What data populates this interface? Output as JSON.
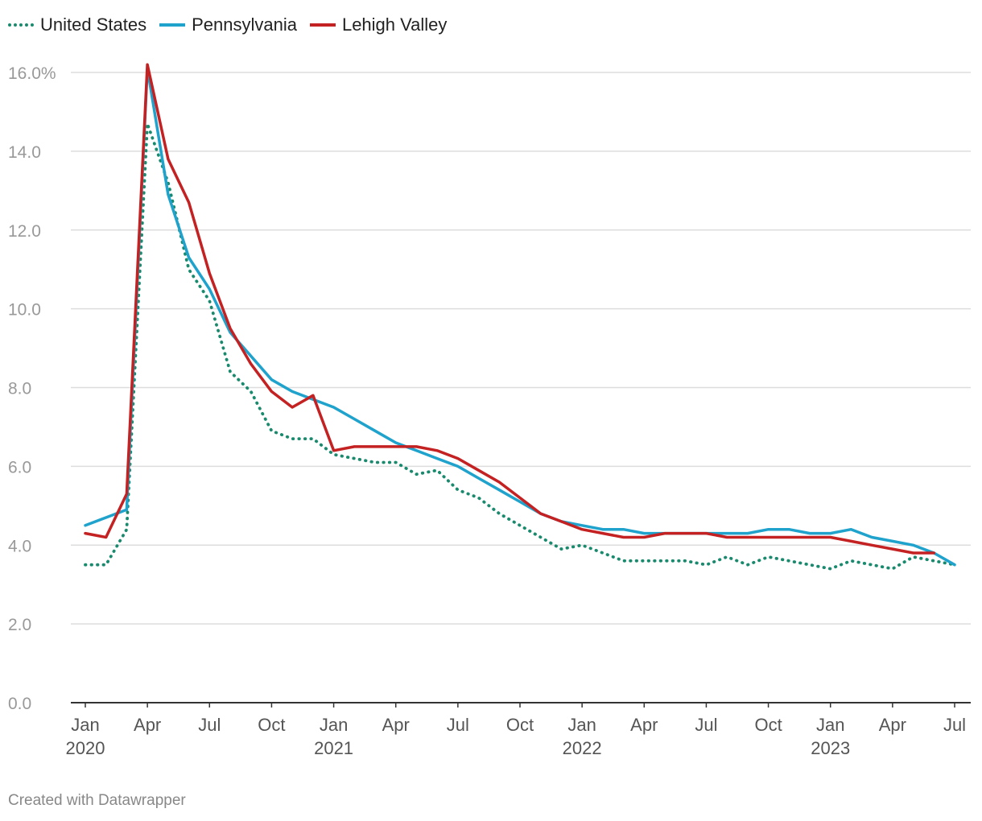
{
  "legend": {
    "us": "United States",
    "pa": "Pennsylvania",
    "lv": "Lehigh Valley"
  },
  "colors": {
    "us": "#1a8a6e",
    "pa": "#1fa2cc",
    "lv": "#c42122",
    "grid": "#dddddd",
    "axis": "#333333",
    "tick": "#999999"
  },
  "footer": "Created with Datawrapper",
  "chart_data": {
    "type": "line",
    "title": "",
    "xlabel": "",
    "ylabel": "",
    "ylim": [
      0,
      16
    ],
    "y_ticks": [
      "0.0",
      "2.0",
      "4.0",
      "6.0",
      "8.0",
      "10.0",
      "12.0",
      "14.0",
      "16.0%"
    ],
    "x_ticks": [
      {
        "month_index": 0,
        "label": "Jan",
        "year": "2020"
      },
      {
        "month_index": 3,
        "label": "Apr",
        "year": ""
      },
      {
        "month_index": 6,
        "label": "Jul",
        "year": ""
      },
      {
        "month_index": 9,
        "label": "Oct",
        "year": ""
      },
      {
        "month_index": 12,
        "label": "Jan",
        "year": "2021"
      },
      {
        "month_index": 15,
        "label": "Apr",
        "year": ""
      },
      {
        "month_index": 18,
        "label": "Jul",
        "year": ""
      },
      {
        "month_index": 21,
        "label": "Oct",
        "year": ""
      },
      {
        "month_index": 24,
        "label": "Jan",
        "year": "2022"
      },
      {
        "month_index": 27,
        "label": "Apr",
        "year": ""
      },
      {
        "month_index": 30,
        "label": "Jul",
        "year": ""
      },
      {
        "month_index": 33,
        "label": "Oct",
        "year": ""
      },
      {
        "month_index": 36,
        "label": "Jan",
        "year": "2023"
      },
      {
        "month_index": 39,
        "label": "Apr",
        "year": ""
      },
      {
        "month_index": 42,
        "label": "Jul",
        "year": ""
      }
    ],
    "x_start": "Jan 2020",
    "x_end": "Jul 2023",
    "series": [
      {
        "name": "United States",
        "key": "us",
        "style": "dotted",
        "values": [
          3.5,
          3.5,
          4.4,
          14.7,
          13.2,
          11.0,
          10.2,
          8.4,
          7.9,
          6.9,
          6.7,
          6.7,
          6.3,
          6.2,
          6.1,
          6.1,
          5.8,
          5.9,
          5.4,
          5.2,
          4.8,
          4.5,
          4.2,
          3.9,
          4.0,
          3.8,
          3.6,
          3.6,
          3.6,
          3.6,
          3.5,
          3.7,
          3.5,
          3.7,
          3.6,
          3.5,
          3.4,
          3.6,
          3.5,
          3.4,
          3.7,
          3.6,
          3.5
        ]
      },
      {
        "name": "Pennsylvania",
        "key": "pa",
        "style": "solid",
        "values": [
          4.5,
          4.7,
          4.9,
          16.1,
          12.9,
          11.3,
          10.5,
          9.4,
          8.8,
          8.2,
          7.9,
          7.7,
          7.5,
          7.2,
          6.9,
          6.6,
          6.4,
          6.2,
          6.0,
          5.7,
          5.4,
          5.1,
          4.8,
          4.6,
          4.5,
          4.4,
          4.4,
          4.3,
          4.3,
          4.3,
          4.3,
          4.3,
          4.3,
          4.4,
          4.4,
          4.3,
          4.3,
          4.4,
          4.2,
          4.1,
          4.0,
          3.8,
          3.5
        ]
      },
      {
        "name": "Lehigh Valley",
        "key": "lv",
        "style": "solid",
        "values": [
          4.3,
          4.2,
          5.3,
          16.2,
          13.8,
          12.7,
          10.9,
          9.5,
          8.6,
          7.9,
          7.5,
          7.8,
          6.4,
          6.5,
          6.5,
          6.5,
          6.5,
          6.4,
          6.2,
          5.9,
          5.6,
          5.2,
          4.8,
          4.6,
          4.4,
          4.3,
          4.2,
          4.2,
          4.3,
          4.3,
          4.3,
          4.2,
          4.2,
          4.2,
          4.2,
          4.2,
          4.2,
          4.1,
          4.0,
          3.9,
          3.8,
          3.8
        ]
      }
    ]
  }
}
